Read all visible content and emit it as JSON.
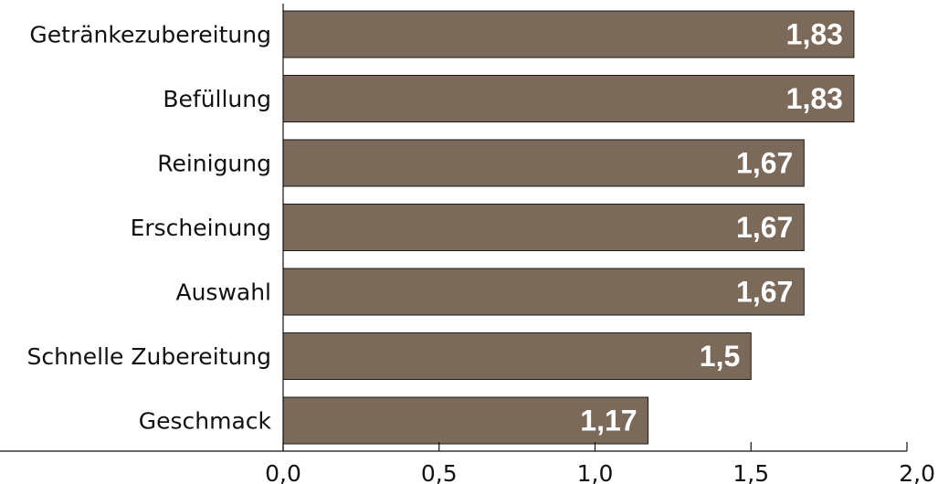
{
  "chart_data": {
    "type": "bar",
    "orientation": "horizontal",
    "categories": [
      "Getränkezubereitung",
      "Befüllung",
      "Reinigung",
      "Erscheinung",
      "Auswahl",
      "Schnelle Zubereitung",
      "Geschmack"
    ],
    "values": [
      1.83,
      1.83,
      1.67,
      1.67,
      1.67,
      1.5,
      1.17
    ],
    "value_labels": [
      "1,83",
      "1,83",
      "1,67",
      "1,67",
      "1,67",
      "1,5",
      "1,17"
    ],
    "xlim": [
      0,
      2
    ],
    "xticks": [
      0,
      0.5,
      1,
      1.5,
      2
    ],
    "xtick_labels": [
      "0,0",
      "0,5",
      "1,0",
      "1,5",
      "2,0"
    ],
    "title": "",
    "xlabel": "",
    "ylabel": "",
    "grid": false,
    "bar_color": "#7b6a59",
    "value_label_color": "#ffffff"
  }
}
